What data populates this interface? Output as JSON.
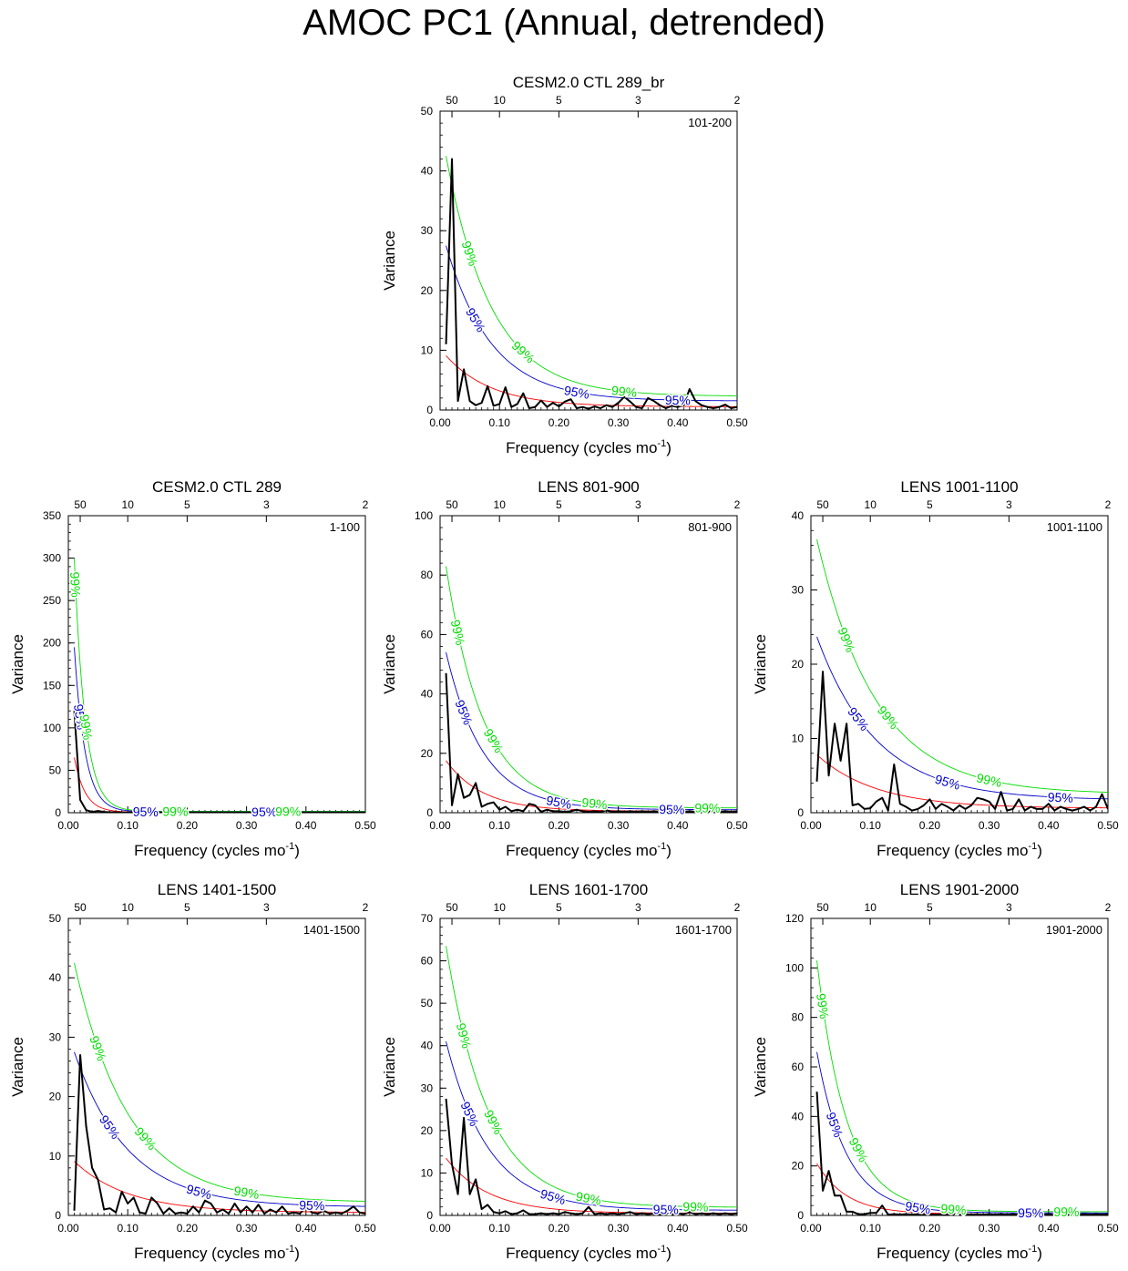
{
  "figure": {
    "title": "AMOC PC1 (Annual, detrended)",
    "xlabel": "Frequency (cycles mo",
    "xlabel_sup": "-1",
    "xlabel_close": ")",
    "ylabel": "Variance",
    "xticks": [
      "0.00",
      "0.10",
      "0.20",
      "0.30",
      "0.40",
      "0.50"
    ],
    "period_ticks": [
      "50",
      "10",
      "5",
      "3",
      "2"
    ],
    "period_values": [
      50,
      10,
      5,
      3,
      2
    ],
    "conf95_label": "95%",
    "conf99_label": "99%",
    "colors": {
      "spectrum": "#000000",
      "red_noise": "#ff0000",
      "conf95": "#0000cc",
      "conf99": "#00dd00"
    }
  },
  "chart_data": [
    {
      "type": "line",
      "title": "CESM2.0 CTL 289_br",
      "subtitle": "101-200",
      "xlim": [
        0,
        0.5
      ],
      "ylim": [
        0,
        50
      ],
      "yticks": [
        0,
        10,
        20,
        30,
        40,
        50
      ],
      "red_noise": {
        "start": 9.1,
        "decay": 13,
        "floor": 0.55
      },
      "conf95": {
        "start": 27.5,
        "decay": 13,
        "floor": 1.5
      },
      "conf99": {
        "start": 42.5,
        "decay": 13,
        "floor": 2.3
      },
      "spectrum_x": [
        0.01,
        0.02,
        0.03,
        0.04,
        0.05,
        0.06,
        0.07,
        0.08,
        0.09,
        0.1,
        0.11,
        0.12,
        0.13,
        0.14,
        0.15,
        0.16,
        0.17,
        0.18,
        0.19,
        0.2,
        0.21,
        0.22,
        0.23,
        0.24,
        0.25,
        0.26,
        0.27,
        0.28,
        0.29,
        0.3,
        0.31,
        0.32,
        0.33,
        0.34,
        0.35,
        0.36,
        0.37,
        0.38,
        0.39,
        0.4,
        0.41,
        0.42,
        0.43,
        0.44,
        0.45,
        0.46,
        0.47,
        0.48,
        0.49,
        0.5
      ],
      "spectrum_y": [
        11,
        42,
        1.5,
        6.8,
        1.5,
        0.8,
        1.2,
        4,
        0.7,
        1,
        3.8,
        0.5,
        1,
        2.8,
        0.3,
        0.5,
        1.6,
        0.5,
        1.2,
        0.6,
        1.4,
        1.8,
        0.3,
        0.5,
        0.2,
        0.6,
        0.3,
        0.8,
        0.5,
        1.2,
        2.2,
        1.4,
        0.5,
        0.3,
        2,
        1.5,
        0.8,
        0.3,
        0.7,
        0.5,
        0.8,
        3.5,
        1.5,
        0.8,
        0.5,
        0.3,
        0.5,
        0.9,
        0.3,
        0.5
      ],
      "label95_x": [
        0.06,
        0.23,
        0.4
      ],
      "label99_x": [
        0.05,
        0.14,
        0.31
      ]
    },
    {
      "type": "line",
      "title": "CESM2.0 CTL 289",
      "subtitle": "1-100",
      "xlim": [
        0,
        0.5
      ],
      "ylim": [
        0,
        350
      ],
      "yticks": [
        0,
        50,
        100,
        150,
        200,
        250,
        300,
        350
      ],
      "red_noise": {
        "start": 65,
        "decay": 55,
        "floor": 0.5
      },
      "conf95": {
        "start": 195,
        "decay": 55,
        "floor": 1.0
      },
      "conf99": {
        "start": 300,
        "decay": 55,
        "floor": 1.6
      },
      "spectrum_x": [
        0.01,
        0.02,
        0.03,
        0.04,
        0.05,
        0.06,
        0.07,
        0.08,
        0.09,
        0.1,
        0.11,
        0.12,
        0.13,
        0.14,
        0.15,
        0.16,
        0.17,
        0.18,
        0.19,
        0.2,
        0.21,
        0.22,
        0.23,
        0.24,
        0.25,
        0.26,
        0.27,
        0.28,
        0.29,
        0.3,
        0.31,
        0.32,
        0.33,
        0.34,
        0.35,
        0.36,
        0.37,
        0.38,
        0.39,
        0.4,
        0.41,
        0.42,
        0.43,
        0.44,
        0.45,
        0.46,
        0.47,
        0.48,
        0.49,
        0.5
      ],
      "spectrum_y": [
        120,
        15,
        3,
        1,
        2,
        1,
        0.5,
        0.5,
        0.3,
        0.3,
        0.3,
        0.3,
        0.2,
        0.2,
        0.2,
        0.2,
        0.2,
        0.2,
        0.2,
        0.2,
        0.2,
        0.2,
        0.2,
        0.2,
        0.2,
        0.2,
        0.2,
        0.2,
        0.2,
        0.2,
        0.2,
        0.2,
        0.2,
        0.2,
        0.2,
        0.2,
        0.2,
        0.2,
        0.2,
        0.2,
        0.2,
        0.2,
        0.2,
        0.2,
        0.2,
        0.2,
        0.2,
        0.2,
        0.2,
        0.2
      ],
      "label95_x": [
        0.02,
        0.13,
        0.33
      ],
      "label99_x": [
        0.012,
        0.03,
        0.18,
        0.37
      ]
    },
    {
      "type": "line",
      "title": "LENS 801-900",
      "subtitle": "801-900",
      "xlim": [
        0,
        0.5
      ],
      "ylim": [
        0,
        100
      ],
      "yticks": [
        0,
        20,
        40,
        60,
        80,
        100
      ],
      "red_noise": {
        "start": 17.5,
        "decay": 16,
        "floor": 0.5
      },
      "conf95": {
        "start": 54,
        "decay": 16,
        "floor": 1.0
      },
      "conf99": {
        "start": 83,
        "decay": 16,
        "floor": 1.6
      },
      "spectrum_x": [
        0.01,
        0.02,
        0.03,
        0.04,
        0.05,
        0.06,
        0.07,
        0.08,
        0.09,
        0.1,
        0.11,
        0.12,
        0.13,
        0.14,
        0.15,
        0.16,
        0.17,
        0.18,
        0.19,
        0.2,
        0.21,
        0.22,
        0.23,
        0.24,
        0.25,
        0.26,
        0.27,
        0.28,
        0.29,
        0.3,
        0.31,
        0.32,
        0.33,
        0.34,
        0.35,
        0.36,
        0.37,
        0.38,
        0.39,
        0.4,
        0.41,
        0.42,
        0.43,
        0.44,
        0.45,
        0.46,
        0.47,
        0.48,
        0.49,
        0.5
      ],
      "spectrum_y": [
        47,
        2.5,
        13,
        5,
        6,
        10,
        2,
        3,
        3.5,
        1,
        2,
        0.5,
        1,
        0.5,
        3,
        2.5,
        0.3,
        1,
        0.5,
        0.5,
        0.3,
        0.5,
        1,
        0.5,
        0.3,
        0.5,
        0.3,
        0.8,
        0.3,
        0.5,
        0.3,
        0.5,
        0.3,
        0.5,
        0.3,
        0.5,
        0.3,
        0.5,
        0.3,
        0.5,
        0.3,
        0.5,
        0.3,
        0.5,
        0.3,
        0.5,
        0.3,
        0.5,
        0.3,
        0.5
      ],
      "label95_x": [
        0.04,
        0.2,
        0.39
      ],
      "label99_x": [
        0.03,
        0.09,
        0.26,
        0.45
      ]
    },
    {
      "type": "line",
      "title": "LENS 1001-1100",
      "subtitle": "1001-1100",
      "xlim": [
        0,
        0.5
      ],
      "ylim": [
        0,
        40
      ],
      "yticks": [
        0,
        10,
        20,
        30,
        40
      ],
      "red_noise": {
        "start": 7.8,
        "decay": 10,
        "floor": 0.6
      },
      "conf95": {
        "start": 23.7,
        "decay": 10,
        "floor": 1.7
      },
      "conf99": {
        "start": 36.8,
        "decay": 10,
        "floor": 2.5
      },
      "spectrum_x": [
        0.01,
        0.02,
        0.03,
        0.04,
        0.05,
        0.06,
        0.07,
        0.08,
        0.09,
        0.1,
        0.11,
        0.12,
        0.13,
        0.14,
        0.15,
        0.16,
        0.17,
        0.18,
        0.19,
        0.2,
        0.21,
        0.22,
        0.23,
        0.24,
        0.25,
        0.26,
        0.27,
        0.28,
        0.29,
        0.3,
        0.31,
        0.32,
        0.33,
        0.34,
        0.35,
        0.36,
        0.37,
        0.38,
        0.39,
        0.4,
        0.41,
        0.42,
        0.43,
        0.44,
        0.45,
        0.46,
        0.47,
        0.48,
        0.49,
        0.5
      ],
      "spectrum_y": [
        4.2,
        19,
        5,
        12,
        7,
        12,
        1,
        1.2,
        0.5,
        0.6,
        1.5,
        2,
        0.3,
        6.5,
        1.2,
        0.8,
        0.3,
        0.5,
        1,
        1.8,
        0.5,
        1.2,
        0.8,
        0.3,
        1,
        0.5,
        1,
        2,
        1.8,
        1.5,
        0.5,
        2.8,
        0.3,
        0.5,
        1.8,
        0.3,
        0.8,
        0.5,
        0.5,
        1.2,
        0.3,
        0.8,
        0.5,
        0.3,
        0.5,
        0.8,
        0.3,
        0.8,
        2.5,
        0.5
      ],
      "label95_x": [
        0.08,
        0.23,
        0.42
      ],
      "label99_x": [
        0.06,
        0.13,
        0.3
      ]
    },
    {
      "type": "line",
      "title": "LENS 1401-1500",
      "subtitle": "1401-1500",
      "xlim": [
        0,
        0.5
      ],
      "ylim": [
        0,
        50
      ],
      "yticks": [
        0,
        10,
        20,
        30,
        40,
        50
      ],
      "red_noise": {
        "start": 9.1,
        "decay": 11,
        "floor": 0.5
      },
      "conf95": {
        "start": 27.5,
        "decay": 11,
        "floor": 1.4
      },
      "conf99": {
        "start": 42.5,
        "decay": 11,
        "floor": 2.2
      },
      "spectrum_x": [
        0.01,
        0.02,
        0.03,
        0.04,
        0.05,
        0.06,
        0.07,
        0.08,
        0.09,
        0.1,
        0.11,
        0.12,
        0.13,
        0.14,
        0.15,
        0.16,
        0.17,
        0.18,
        0.19,
        0.2,
        0.21,
        0.22,
        0.23,
        0.24,
        0.25,
        0.26,
        0.27,
        0.28,
        0.29,
        0.3,
        0.31,
        0.32,
        0.33,
        0.34,
        0.35,
        0.36,
        0.37,
        0.38,
        0.39,
        0.4,
        0.41,
        0.42,
        0.43,
        0.44,
        0.45,
        0.46,
        0.47,
        0.48,
        0.49,
        0.5
      ],
      "spectrum_y": [
        0.8,
        27,
        15,
        8,
        6,
        1,
        1.2,
        0.5,
        4,
        2,
        3,
        0.5,
        0.3,
        3,
        2,
        0.3,
        1.2,
        0.3,
        0.5,
        0.3,
        1.5,
        0.5,
        2.5,
        2,
        0.5,
        1,
        0.3,
        2,
        0.5,
        1.5,
        0.5,
        1.8,
        0.3,
        1,
        0.5,
        1.5,
        0.3,
        0.5,
        0.3,
        1.5,
        0.5,
        0.3,
        0.8,
        0.3,
        0.5,
        0.3,
        0.8,
        1.5,
        0.5,
        0.3
      ],
      "label95_x": [
        0.07,
        0.22,
        0.41
      ],
      "label99_x": [
        0.05,
        0.13,
        0.3
      ]
    },
    {
      "type": "line",
      "title": "LENS 1601-1700",
      "subtitle": "1601-1700",
      "xlim": [
        0,
        0.5
      ],
      "ylim": [
        0,
        70
      ],
      "yticks": [
        0,
        10,
        20,
        30,
        40,
        50,
        60,
        70
      ],
      "red_noise": {
        "start": 13.5,
        "decay": 14,
        "floor": 0.5
      },
      "conf95": {
        "start": 41,
        "decay": 14,
        "floor": 1.2
      },
      "conf99": {
        "start": 63.5,
        "decay": 14,
        "floor": 1.9
      },
      "spectrum_x": [
        0.01,
        0.02,
        0.03,
        0.04,
        0.05,
        0.06,
        0.07,
        0.08,
        0.09,
        0.1,
        0.11,
        0.12,
        0.13,
        0.14,
        0.15,
        0.16,
        0.17,
        0.18,
        0.19,
        0.2,
        0.21,
        0.22,
        0.23,
        0.24,
        0.25,
        0.26,
        0.27,
        0.28,
        0.29,
        0.3,
        0.31,
        0.32,
        0.33,
        0.34,
        0.35,
        0.36,
        0.37,
        0.38,
        0.39,
        0.4,
        0.41,
        0.42,
        0.43,
        0.44,
        0.45,
        0.46,
        0.47,
        0.48,
        0.49,
        0.5
      ],
      "spectrum_y": [
        27.5,
        12,
        5,
        23,
        5,
        8.5,
        1.5,
        2.5,
        0.8,
        0.5,
        1,
        0.3,
        0.5,
        1.2,
        0.3,
        0.3,
        0.5,
        0.3,
        0.5,
        0.3,
        0.8,
        0.5,
        0.3,
        0.5,
        2,
        0.3,
        0.5,
        0.3,
        0.5,
        0.3,
        0.5,
        0.8,
        0.3,
        0.5,
        0.3,
        0.5,
        0.3,
        0.5,
        0.3,
        0.5,
        0.3,
        0.8,
        0.3,
        0.5,
        0.3,
        0.5,
        0.3,
        0.5,
        0.3,
        0.5
      ],
      "label95_x": [
        0.05,
        0.19,
        0.38
      ],
      "label99_x": [
        0.04,
        0.09,
        0.25,
        0.43
      ]
    },
    {
      "type": "line",
      "title": "LENS 1901-2000",
      "subtitle": "1901-2000",
      "xlim": [
        0,
        0.5
      ],
      "ylim": [
        0,
        120
      ],
      "yticks": [
        0,
        20,
        40,
        60,
        80,
        100,
        120
      ],
      "red_noise": {
        "start": 21,
        "decay": 20,
        "floor": 0.5
      },
      "conf95": {
        "start": 66,
        "decay": 20,
        "floor": 1.0
      },
      "conf99": {
        "start": 103,
        "decay": 20,
        "floor": 1.5
      },
      "spectrum_x": [
        0.01,
        0.02,
        0.03,
        0.04,
        0.05,
        0.06,
        0.07,
        0.08,
        0.09,
        0.1,
        0.11,
        0.12,
        0.13,
        0.14,
        0.15,
        0.16,
        0.17,
        0.18,
        0.19,
        0.2,
        0.21,
        0.22,
        0.23,
        0.24,
        0.25,
        0.26,
        0.27,
        0.28,
        0.29,
        0.3,
        0.31,
        0.32,
        0.33,
        0.34,
        0.35,
        0.36,
        0.37,
        0.38,
        0.39,
        0.4,
        0.41,
        0.42,
        0.43,
        0.44,
        0.45,
        0.46,
        0.47,
        0.48,
        0.49,
        0.5
      ],
      "spectrum_y": [
        50,
        10,
        18,
        8,
        8,
        1.5,
        1.5,
        0.5,
        0.5,
        1,
        1,
        4,
        0.3,
        0.5,
        0.3,
        0.5,
        0.3,
        0.5,
        0.3,
        0.5,
        0.3,
        0.5,
        0.3,
        0.5,
        0.3,
        0.5,
        0.3,
        0.5,
        0.3,
        0.5,
        0.3,
        0.5,
        0.3,
        0.5,
        0.3,
        0.5,
        0.3,
        0.5,
        0.3,
        0.5,
        0.3,
        0.5,
        0.3,
        0.5,
        0.3,
        0.5,
        0.3,
        0.5,
        0.3,
        0.5
      ],
      "label95_x": [
        0.04,
        0.18,
        0.37
      ],
      "label99_x": [
        0.02,
        0.08,
        0.24,
        0.43
      ]
    }
  ]
}
